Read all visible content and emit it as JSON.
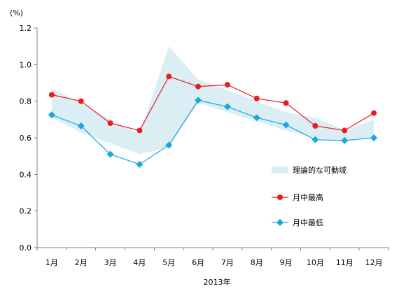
{
  "chart_data": {
    "type": "line",
    "ylabel": "(%)",
    "xlabel": "2013年",
    "categories": [
      "1月",
      "2月",
      "3月",
      "4月",
      "5月",
      "6月",
      "7月",
      "8月",
      "9月",
      "10月",
      "11月",
      "12月"
    ],
    "ylim": [
      0,
      1.2
    ],
    "yticks": [
      "0.0",
      "0.2",
      "0.4",
      "0.6",
      "0.8",
      "1.0",
      "1.2"
    ],
    "grid": false,
    "legend_position": "right",
    "band": {
      "name": "理論的な可動域",
      "upper": [
        0.87,
        0.79,
        0.7,
        0.62,
        1.1,
        0.92,
        0.86,
        0.8,
        0.74,
        0.71,
        0.64,
        0.7
      ],
      "lower": [
        0.71,
        0.63,
        0.57,
        0.51,
        0.55,
        0.79,
        0.74,
        0.69,
        0.64,
        0.6,
        0.58,
        0.6
      ],
      "color": "#dbeef4"
    },
    "series": [
      {
        "name": "月中最高",
        "values": [
          0.835,
          0.8,
          0.68,
          0.64,
          0.935,
          0.88,
          0.89,
          0.815,
          0.79,
          0.665,
          0.64,
          0.735
        ],
        "color": "#e81e1e",
        "marker": "circle"
      },
      {
        "name": "月中最低",
        "values": [
          0.725,
          0.665,
          0.51,
          0.455,
          0.56,
          0.805,
          0.77,
          0.71,
          0.67,
          0.59,
          0.585,
          0.6
        ],
        "color": "#1aa6e0",
        "marker": "diamond"
      }
    ]
  }
}
